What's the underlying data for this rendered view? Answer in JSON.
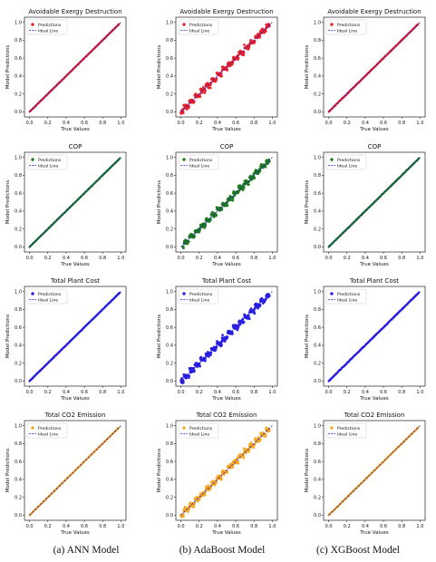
{
  "captions": [
    "(a) ANN Model",
    "(b) AdaBoost Model",
    "(c) XGBoost Model"
  ],
  "legend_labels": {
    "predictions": "Predictions",
    "ideal": "Ideal Line"
  },
  "colors": {
    "ideal_line": "#1f1fd6",
    "grid_bg": "#ffffff"
  },
  "row_settings": [
    {
      "title": "Avoidable Exergy Destruction",
      "color": "#e8202a"
    },
    {
      "title": "COP",
      "color": "#1f7a1f"
    },
    {
      "title": "Total Plant Cost",
      "color": "#2b1fe0"
    },
    {
      "title": "Total CO2 Emission",
      "color": "#f5a623"
    }
  ],
  "chart_data": [
    {
      "type": "scatter",
      "model": "ANN",
      "title": "Avoidable Exergy Destruction",
      "xlabel": "True Values",
      "ylabel": "Model Predictions",
      "xlim": [
        0,
        1
      ],
      "ylim": [
        0,
        1
      ],
      "xticks": [
        "0.0",
        "0.2",
        "0.4",
        "0.6",
        "0.8",
        "1.0"
      ],
      "yticks": [
        "0.0",
        "0.2",
        "0.4",
        "0.6",
        "0.8",
        "1.0"
      ],
      "legend": "top-left",
      "series": [
        {
          "name": "Predictions",
          "color": "#e8202a",
          "relation": "y≈x",
          "spread": 0.004,
          "x_range": [
            0.0,
            0.98
          ]
        },
        {
          "name": "Ideal Line",
          "line": [
            [
              0,
              0
            ],
            [
              1,
              1
            ]
          ]
        }
      ]
    },
    {
      "type": "scatter",
      "model": "AdaBoost",
      "title": "Avoidable Exergy Destruction",
      "xlabel": "True Values",
      "ylabel": "Model Predictions",
      "xlim": [
        0,
        1
      ],
      "ylim": [
        0,
        1
      ],
      "xticks": [
        "0.0",
        "0.2",
        "0.4",
        "0.6",
        "0.8",
        "1.0"
      ],
      "yticks": [
        "0.0",
        "0.2",
        "0.4",
        "0.6",
        "0.8",
        "1.0"
      ],
      "legend": "top-left",
      "series": [
        {
          "name": "Predictions",
          "color": "#e8202a",
          "relation": "stepwise y≈x",
          "spread": 0.035,
          "x_range": [
            0.0,
            0.97
          ]
        },
        {
          "name": "Ideal Line",
          "line": [
            [
              0,
              0
            ],
            [
              1,
              1
            ]
          ]
        }
      ]
    },
    {
      "type": "scatter",
      "model": "XGBoost",
      "title": "Avoidable Exergy Destruction",
      "xlabel": "True Values",
      "ylabel": "Model Predictions",
      "xlim": [
        0,
        1
      ],
      "ylim": [
        0,
        1
      ],
      "xticks": [
        "0.0",
        "0.2",
        "0.4",
        "0.6",
        "0.8",
        "1.0"
      ],
      "yticks": [
        "0.0",
        "0.2",
        "0.4",
        "0.6",
        "0.8",
        "1.0"
      ],
      "legend": "top-left",
      "series": [
        {
          "name": "Predictions",
          "color": "#e8202a",
          "relation": "y≈x",
          "spread": 0.006,
          "x_range": [
            0.0,
            0.98
          ]
        },
        {
          "name": "Ideal Line",
          "line": [
            [
              0,
              0
            ],
            [
              1,
              1
            ]
          ]
        }
      ]
    },
    {
      "type": "scatter",
      "model": "ANN",
      "title": "COP",
      "xlabel": "True Values",
      "ylabel": "Model Predictions",
      "xlim": [
        0,
        1
      ],
      "ylim": [
        0,
        1
      ],
      "xticks": [
        "0.0",
        "0.2",
        "0.4",
        "0.6",
        "0.8",
        "1.0"
      ],
      "yticks": [
        "0.0",
        "0.2",
        "0.4",
        "0.6",
        "0.8",
        "1.0"
      ],
      "legend": "top-left",
      "series": [
        {
          "name": "Predictions",
          "color": "#1f7a1f",
          "relation": "y≈x",
          "spread": 0.004,
          "x_range": [
            0.0,
            0.99
          ]
        },
        {
          "name": "Ideal Line",
          "line": [
            [
              0,
              0
            ],
            [
              1,
              1
            ]
          ]
        }
      ]
    },
    {
      "type": "scatter",
      "model": "AdaBoost",
      "title": "COP",
      "xlabel": "True Values",
      "ylabel": "Model Predictions",
      "xlim": [
        0,
        1
      ],
      "ylim": [
        0,
        1
      ],
      "xticks": [
        "0.0",
        "0.2",
        "0.4",
        "0.6",
        "0.8",
        "1.0"
      ],
      "yticks": [
        "0.0",
        "0.2",
        "0.4",
        "0.6",
        "0.8",
        "1.0"
      ],
      "legend": "top-left",
      "series": [
        {
          "name": "Predictions",
          "color": "#1f7a1f",
          "relation": "stepwise y≈x",
          "spread": 0.035,
          "x_range": [
            0.02,
            0.97
          ]
        },
        {
          "name": "Ideal Line",
          "line": [
            [
              0,
              0
            ],
            [
              1,
              1
            ]
          ]
        }
      ]
    },
    {
      "type": "scatter",
      "model": "XGBoost",
      "title": "COP",
      "xlabel": "True Values",
      "ylabel": "Model Predictions",
      "xlim": [
        0,
        1
      ],
      "ylim": [
        0,
        1
      ],
      "xticks": [
        "0.0",
        "0.2",
        "0.4",
        "0.6",
        "0.8",
        "1.0"
      ],
      "yticks": [
        "0.0",
        "0.2",
        "0.4",
        "0.6",
        "0.8",
        "1.0"
      ],
      "legend": "top-left",
      "series": [
        {
          "name": "Predictions",
          "color": "#1f7a1f",
          "relation": "y≈x",
          "spread": 0.006,
          "x_range": [
            0.0,
            0.99
          ]
        },
        {
          "name": "Ideal Line",
          "line": [
            [
              0,
              0
            ],
            [
              1,
              1
            ]
          ]
        }
      ]
    },
    {
      "type": "scatter",
      "model": "ANN",
      "title": "Total Plant Cost",
      "xlabel": "True Values",
      "ylabel": "Model Predictions",
      "xlim": [
        0,
        1
      ],
      "ylim": [
        0,
        1
      ],
      "xticks": [
        "0.0",
        "0.2",
        "0.4",
        "0.6",
        "0.8",
        "1.0"
      ],
      "yticks": [
        "0.0",
        "0.2",
        "0.4",
        "0.6",
        "0.8",
        "1.0"
      ],
      "legend": "top-left",
      "series": [
        {
          "name": "Predictions",
          "color": "#2b1fe0",
          "relation": "y≈x",
          "spread": 0.005,
          "x_range": [
            0.0,
            0.99
          ]
        },
        {
          "name": "Ideal Line",
          "line": [
            [
              0,
              0
            ],
            [
              1,
              1
            ]
          ]
        }
      ]
    },
    {
      "type": "scatter",
      "model": "AdaBoost",
      "title": "Total Plant Cost",
      "xlabel": "True Values",
      "ylabel": "Model Predictions",
      "xlim": [
        0,
        1
      ],
      "ylim": [
        0,
        1
      ],
      "xticks": [
        "0.0",
        "0.2",
        "0.4",
        "0.6",
        "0.8",
        "1.0"
      ],
      "yticks": [
        "0.0",
        "0.2",
        "0.4",
        "0.6",
        "0.8",
        "1.0"
      ],
      "legend": "top-left",
      "series": [
        {
          "name": "Predictions",
          "color": "#2b1fe0",
          "relation": "stepwise y≈x",
          "spread": 0.04,
          "x_range": [
            0.0,
            0.97
          ]
        },
        {
          "name": "Ideal Line",
          "line": [
            [
              0,
              0
            ],
            [
              1,
              1
            ]
          ]
        }
      ]
    },
    {
      "type": "scatter",
      "model": "XGBoost",
      "title": "Total Plant Cost",
      "xlabel": "True Values",
      "ylabel": "Model Predictions",
      "xlim": [
        0,
        1
      ],
      "ylim": [
        0,
        1
      ],
      "xticks": [
        "0.0",
        "0.2",
        "0.4",
        "0.6",
        "0.8",
        "1.0"
      ],
      "yticks": [
        "0.0",
        "0.2",
        "0.4",
        "0.6",
        "0.8",
        "1.0"
      ],
      "legend": "top-left",
      "series": [
        {
          "name": "Predictions",
          "color": "#2b1fe0",
          "relation": "y≈x",
          "spread": 0.008,
          "x_range": [
            0.0,
            0.99
          ]
        },
        {
          "name": "Ideal Line",
          "line": [
            [
              0,
              0
            ],
            [
              1,
              1
            ]
          ]
        }
      ]
    },
    {
      "type": "scatter",
      "model": "ANN",
      "title": "Total CO2 Emission",
      "xlabel": "True Values",
      "ylabel": "Model Predictions",
      "xlim": [
        0,
        1
      ],
      "ylim": [
        0,
        1
      ],
      "xticks": [
        "0.0",
        "0.2",
        "0.4",
        "0.6",
        "0.8",
        "1.0"
      ],
      "yticks": [
        "0.0",
        "0.2",
        "0.4",
        "0.6",
        "0.8",
        "1.0"
      ],
      "legend": "top-left",
      "series": [
        {
          "name": "Predictions",
          "color": "#f5a623",
          "relation": "y≈x",
          "spread": 0.004,
          "x_range": [
            0.0,
            0.98
          ]
        },
        {
          "name": "Ideal Line",
          "line": [
            [
              0,
              0
            ],
            [
              1,
              1
            ]
          ]
        }
      ]
    },
    {
      "type": "scatter",
      "model": "AdaBoost",
      "title": "Total CO2 Emission",
      "xlabel": "True Values",
      "ylabel": "Model Predictions",
      "xlim": [
        0,
        1
      ],
      "ylim": [
        0,
        1
      ],
      "xticks": [
        "0.0",
        "0.2",
        "0.4",
        "0.6",
        "0.8",
        "1.0"
      ],
      "yticks": [
        "0.0",
        "0.2",
        "0.4",
        "0.6",
        "0.8",
        "1.0"
      ],
      "legend": "top-left",
      "series": [
        {
          "name": "Predictions",
          "color": "#f5a623",
          "relation": "stepwise y≈x",
          "spread": 0.035,
          "x_range": [
            0.0,
            0.97
          ]
        },
        {
          "name": "Ideal Line",
          "line": [
            [
              0,
              0
            ],
            [
              1,
              1
            ]
          ]
        }
      ]
    },
    {
      "type": "scatter",
      "model": "XGBoost",
      "title": "Total CO2 Emission",
      "xlabel": "True Values",
      "ylabel": "Model Predictions",
      "xlim": [
        0,
        1
      ],
      "ylim": [
        0,
        1
      ],
      "xticks": [
        "0.0",
        "0.2",
        "0.4",
        "0.6",
        "0.8",
        "1.0"
      ],
      "yticks": [
        "0.0",
        "0.2",
        "0.4",
        "0.6",
        "0.8",
        "1.0"
      ],
      "legend": "top-left",
      "series": [
        {
          "name": "Predictions",
          "color": "#f5a623",
          "relation": "y≈x",
          "spread": 0.006,
          "x_range": [
            0.0,
            0.98
          ]
        },
        {
          "name": "Ideal Line",
          "line": [
            [
              0,
              0
            ],
            [
              1,
              1
            ]
          ]
        }
      ]
    }
  ]
}
